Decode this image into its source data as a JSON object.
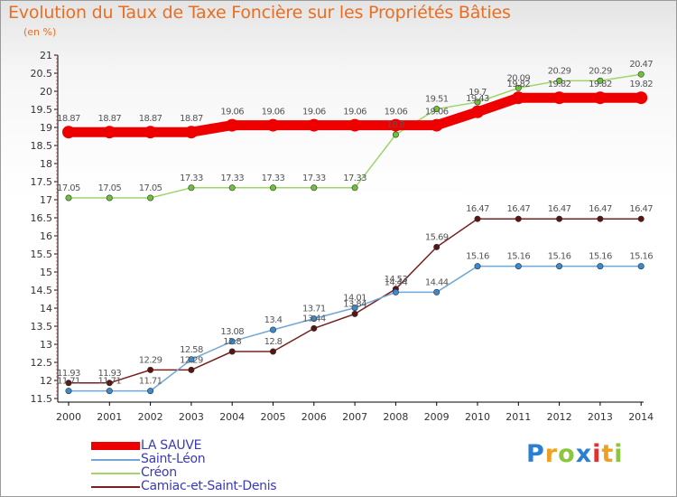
{
  "chart_data": {
    "type": "line",
    "title": "Evolution du Taux de Taxe Foncière sur les Propriétés Bâties",
    "subtitle": "(en %)",
    "xlabel": "",
    "ylabel": "",
    "x": [
      "2000",
      "2001",
      "2002",
      "2003",
      "2004",
      "2005",
      "2006",
      "2007",
      "2008",
      "2009",
      "2010",
      "2011",
      "2012",
      "2013",
      "2014"
    ],
    "ylim": [
      11.5,
      21
    ],
    "yticks": [
      "11.5",
      "12",
      "12.5",
      "13",
      "13.5",
      "14",
      "14.5",
      "15",
      "15.5",
      "16",
      "16.5",
      "17",
      "17.5",
      "18",
      "18.5",
      "19",
      "19.5",
      "20",
      "20.5",
      "21"
    ],
    "grid": false,
    "legend_position": "bottom-left",
    "series": [
      {
        "name": "LA SAUVE",
        "color": "#ee0000",
        "values": [
          18.87,
          18.87,
          18.87,
          18.87,
          19.06,
          19.06,
          19.06,
          19.06,
          19.06,
          19.06,
          19.43,
          19.82,
          19.82,
          19.82,
          19.82
        ],
        "labels": [
          "18.87",
          "18.87",
          "18.87",
          "18.87",
          "19.06",
          "19.06",
          "19.06",
          "19.06",
          "19.06",
          "19.06",
          "19.43",
          "19.82",
          "19.82",
          "19.82",
          "19.82"
        ]
      },
      {
        "name": "Saint-Léon",
        "color": "#6fa8d8",
        "marker": "#3a8ad0",
        "values": [
          11.71,
          11.71,
          11.71,
          12.58,
          13.08,
          13.4,
          13.71,
          14.01,
          14.44,
          14.44,
          15.16,
          15.16,
          15.16,
          15.16,
          15.16
        ],
        "labels": [
          "11.71",
          "11.71",
          "11.71",
          "12.58",
          "13.08",
          "13.4",
          "13.71",
          "14.01",
          "14.44",
          "14.44",
          "15.16",
          "15.16",
          "15.16",
          "15.16",
          "15.16"
        ]
      },
      {
        "name": "Créon",
        "color": "#9ed66a",
        "marker": "#6ec23a",
        "values": [
          17.05,
          17.05,
          17.05,
          17.33,
          17.33,
          17.33,
          17.33,
          17.33,
          18.8,
          19.51,
          19.7,
          20.09,
          20.29,
          20.29,
          20.47
        ],
        "labels": [
          "17.05",
          "17.05",
          "17.05",
          "17.33",
          "17.33",
          "17.33",
          "17.33",
          "17.33",
          "18.8",
          "19.51",
          "19.7",
          "20.09",
          "20.29",
          "20.29",
          "20.47"
        ]
      },
      {
        "name": "Camiac-et-Saint-Denis",
        "color": "#7a2020",
        "marker": "#5a1414",
        "values": [
          11.93,
          11.93,
          12.29,
          12.29,
          12.8,
          12.8,
          13.44,
          13.84,
          14.53,
          15.69,
          16.47,
          16.47,
          16.47,
          16.47,
          16.47
        ],
        "labels": [
          "11.93",
          "11.93",
          "12.29",
          "12.29",
          "12.8",
          "12.8",
          "13.44",
          "13.84",
          "14.53",
          "15.69",
          "16.47",
          "16.47",
          "16.47",
          "16.47",
          "16.47"
        ]
      }
    ]
  },
  "legend": {
    "items": [
      {
        "label": "LA SAUVE",
        "color": "#ee0000"
      },
      {
        "label": "Saint-Léon",
        "color": "#6fa8d8"
      },
      {
        "label": "Créon",
        "color": "#9ed66a"
      },
      {
        "label": "Camiac-et-Saint-Denis",
        "color": "#7a2020"
      }
    ]
  },
  "brand": {
    "name": "Proxiti",
    "letters": [
      "P",
      "r",
      "o",
      "x",
      "i",
      "t",
      "i"
    ],
    "colors": [
      "#2a7fd4",
      "#f0a020",
      "#8cc63f",
      "#2a7fd4",
      "#e03030",
      "#f0a020",
      "#8cc63f"
    ]
  }
}
